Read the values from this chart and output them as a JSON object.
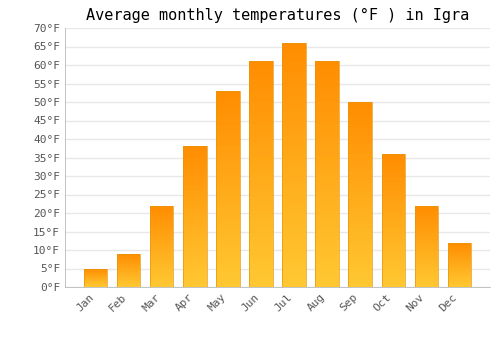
{
  "title": "Average monthly temperatures (°F ) in Igra",
  "months": [
    "Jan",
    "Feb",
    "Mar",
    "Apr",
    "May",
    "Jun",
    "Jul",
    "Aug",
    "Sep",
    "Oct",
    "Nov",
    "Dec"
  ],
  "values": [
    5,
    9,
    22,
    38,
    53,
    61,
    66,
    61,
    50,
    36,
    22,
    12
  ],
  "bar_color_top": "#FFA500",
  "bar_color_bottom": "#FFD700",
  "bar_edge_color": "#E8960A",
  "ylim": [
    0,
    70
  ],
  "yticks": [
    0,
    5,
    10,
    15,
    20,
    25,
    30,
    35,
    40,
    45,
    50,
    55,
    60,
    65,
    70
  ],
  "background_color": "#FFFFFF",
  "grid_color": "#E8E8E8",
  "title_fontsize": 11,
  "tick_fontsize": 8,
  "font_family": "DejaVu Sans Mono"
}
